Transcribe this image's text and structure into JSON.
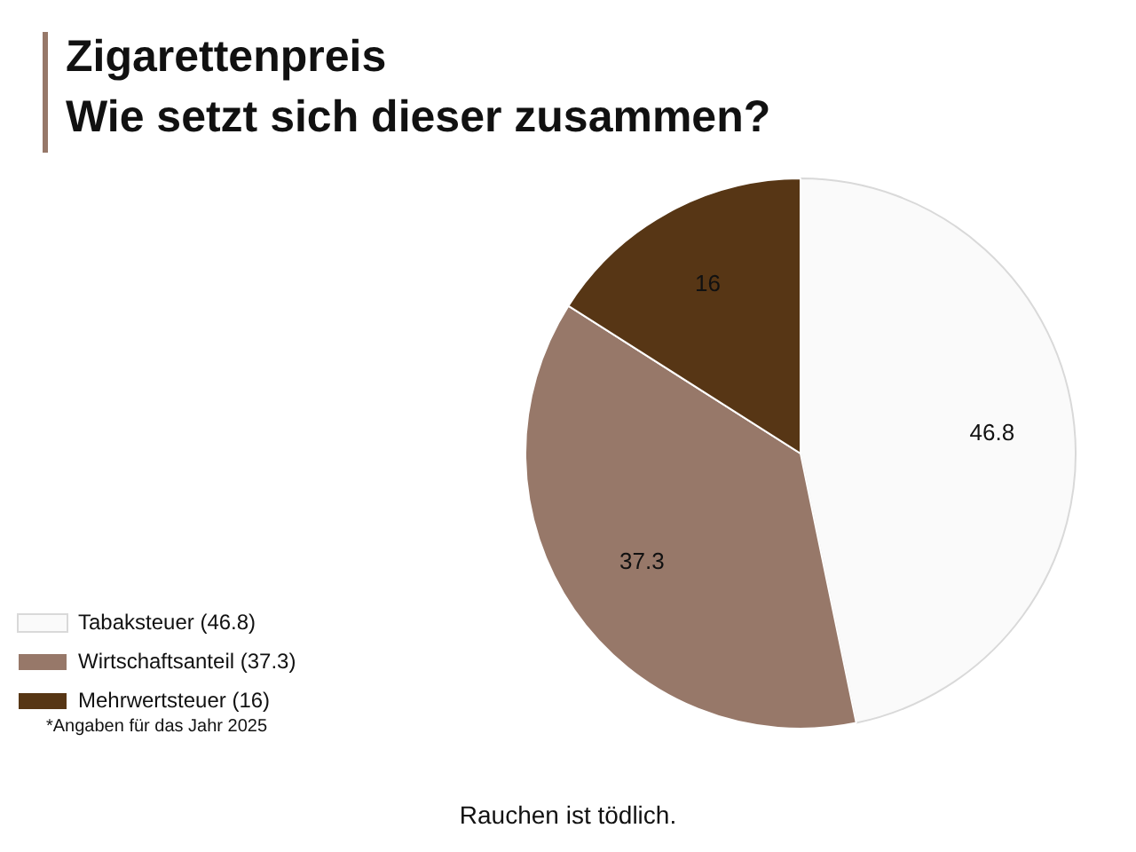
{
  "chart_data": {
    "type": "pie",
    "title": "Zigarettenpreis",
    "subtitle": "Wie setzt sich dieser zusammen?",
    "categories": [
      "Tabaksteuer (46.8)",
      "Wirtschaftsanteil (37.3)",
      "Mehrwertsteuer (16)"
    ],
    "values": [
      46.8,
      37.3,
      16
    ],
    "colors": [
      "#fafafa",
      "#977869",
      "#573615"
    ],
    "data_labels": true,
    "legend": "bottom left",
    "annotations": [
      "*Angaben für das Jahr 2025",
      "Rauchen ist tödlich."
    ]
  }
}
